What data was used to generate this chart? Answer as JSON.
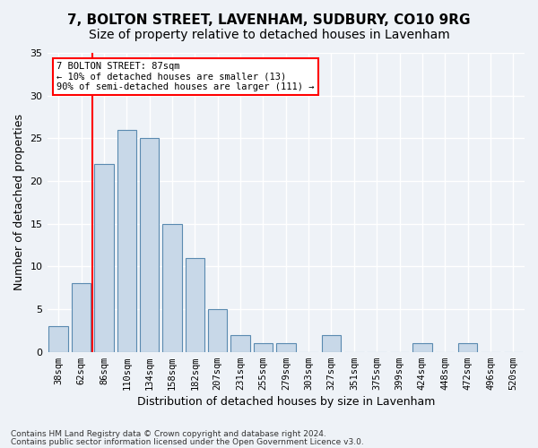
{
  "title1": "7, BOLTON STREET, LAVENHAM, SUDBURY, CO10 9RG",
  "title2": "Size of property relative to detached houses in Lavenham",
  "xlabel": "Distribution of detached houses by size in Lavenham",
  "ylabel": "Number of detached properties",
  "categories": [
    "38sqm",
    "62sqm",
    "86sqm",
    "110sqm",
    "134sqm",
    "158sqm",
    "182sqm",
    "207sqm",
    "231sqm",
    "255sqm",
    "279sqm",
    "303sqm",
    "327sqm",
    "351sqm",
    "375sqm",
    "399sqm",
    "424sqm",
    "448sqm",
    "472sqm",
    "496sqm",
    "520sqm"
  ],
  "values": [
    3,
    8,
    22,
    26,
    25,
    15,
    11,
    5,
    2,
    1,
    1,
    0,
    2,
    0,
    0,
    0,
    1,
    0,
    1,
    0,
    0
  ],
  "bar_color": "#c8d8e8",
  "bar_edge_color": "#5a8ab0",
  "red_line_x": 1.5,
  "annotation_title": "7 BOLTON STREET: 87sqm",
  "annotation_line1": "← 10% of detached houses are smaller (13)",
  "annotation_line2": "90% of semi-detached houses are larger (111) →",
  "footnote1": "Contains HM Land Registry data © Crown copyright and database right 2024.",
  "footnote2": "Contains public sector information licensed under the Open Government Licence v3.0.",
  "ylim": [
    0,
    35
  ],
  "yticks": [
    0,
    5,
    10,
    15,
    20,
    25,
    30,
    35
  ],
  "bg_color": "#eef2f7",
  "plot_bg_color": "#eef2f7",
  "grid_color": "#ffffff",
  "title1_fontsize": 11,
  "title2_fontsize": 10,
  "xlabel_fontsize": 9,
  "ylabel_fontsize": 9
}
